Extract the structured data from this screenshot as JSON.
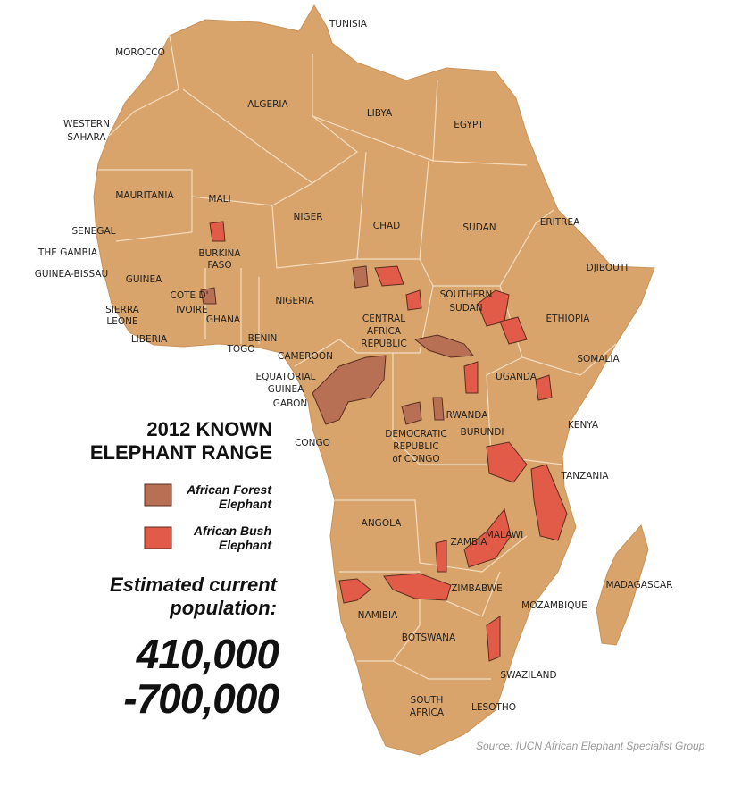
{
  "map_labels": [
    "TUNISIA",
    "MOROCCO",
    [
      "WESTERN",
      "SAHARA"
    ],
    "ALGERIA",
    "LIBYA",
    "EGYPT",
    "MAURITANIA",
    "MALI",
    "NIGER",
    "CHAD",
    "SUDAN",
    "ERITREA",
    "SENEGAL",
    "THE GAMBIA",
    "GUINEA-BISSAU",
    "GUINEA",
    [
      "BURKINA",
      "FASO"
    ],
    "DJIBOUTI",
    [
      "SOUTHERN",
      "SUDAN"
    ],
    "NIGERIA",
    [
      "COTE D'",
      "IVOIRE"
    ],
    "GHANA",
    [
      "SIERRA",
      "LEONE"
    ],
    "LIBERIA",
    "BENIN",
    "TOGO",
    [
      "CENTRAL",
      "AFRICA",
      "REPUBLIC"
    ],
    "ETHIOPIA",
    "CAMEROON",
    "SOMALIA",
    [
      "EQUATORIAL",
      "GUINEA"
    ],
    "GABON",
    "UGANDA",
    "KENYA",
    "RWANDA",
    "BURUNDI",
    "CONGO",
    [
      "DEMOCRATIC",
      "REPUBLIC",
      "of CONGO"
    ],
    "TANZANIA",
    "ANGOLA",
    "MALAWI",
    "ZAMBIA",
    "MADAGASCAR",
    "ZIMBABWE",
    "MOZAMBIQUE",
    "NAMIBIA",
    "BOTSWANA",
    "SWAZILAND",
    [
      "SOUTH",
      "AFRICA"
    ],
    "LESOTHO"
  ],
  "title": [
    "2012 KNOWN",
    "ELEPHANT RANGE"
  ],
  "legend": [
    [
      "African Forest",
      "Elephant"
    ],
    [
      "African Bush",
      "Elephant"
    ]
  ],
  "population_label": [
    "Estimated current",
    "population:"
  ],
  "population_range": [
    "410,000",
    "-700,000"
  ],
  "source": "Source: IUCN African Elephant Specialist Group"
}
